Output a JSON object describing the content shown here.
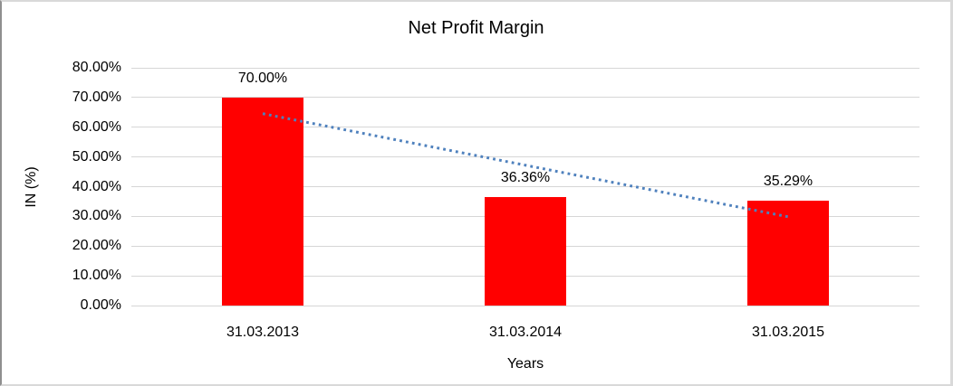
{
  "chart_data": {
    "type": "bar",
    "title": "Net Profit Margin",
    "xlabel": "Years",
    "ylabel": "IN (%)",
    "categories": [
      "31.03.2013",
      "31.03.2014",
      "31.03.2015"
    ],
    "values": [
      70.0,
      36.36,
      35.29
    ],
    "data_labels": [
      "70.00%",
      "36.36%",
      "35.29%"
    ],
    "ylim": [
      0,
      80
    ],
    "ytick_step": 10,
    "ytick_labels": [
      "0.00%",
      "10.00%",
      "20.00%",
      "30.00%",
      "40.00%",
      "50.00%",
      "60.00%",
      "70.00%",
      "80.00%"
    ],
    "grid": true,
    "legend": "none",
    "bar_color": "#FF0000",
    "gridline_color": "#D6D6D6",
    "trendline": {
      "type": "linear",
      "style": "dotted",
      "color": "#4F81BD",
      "start_value_pct": 64.57,
      "end_value_pct": 29.87
    }
  }
}
